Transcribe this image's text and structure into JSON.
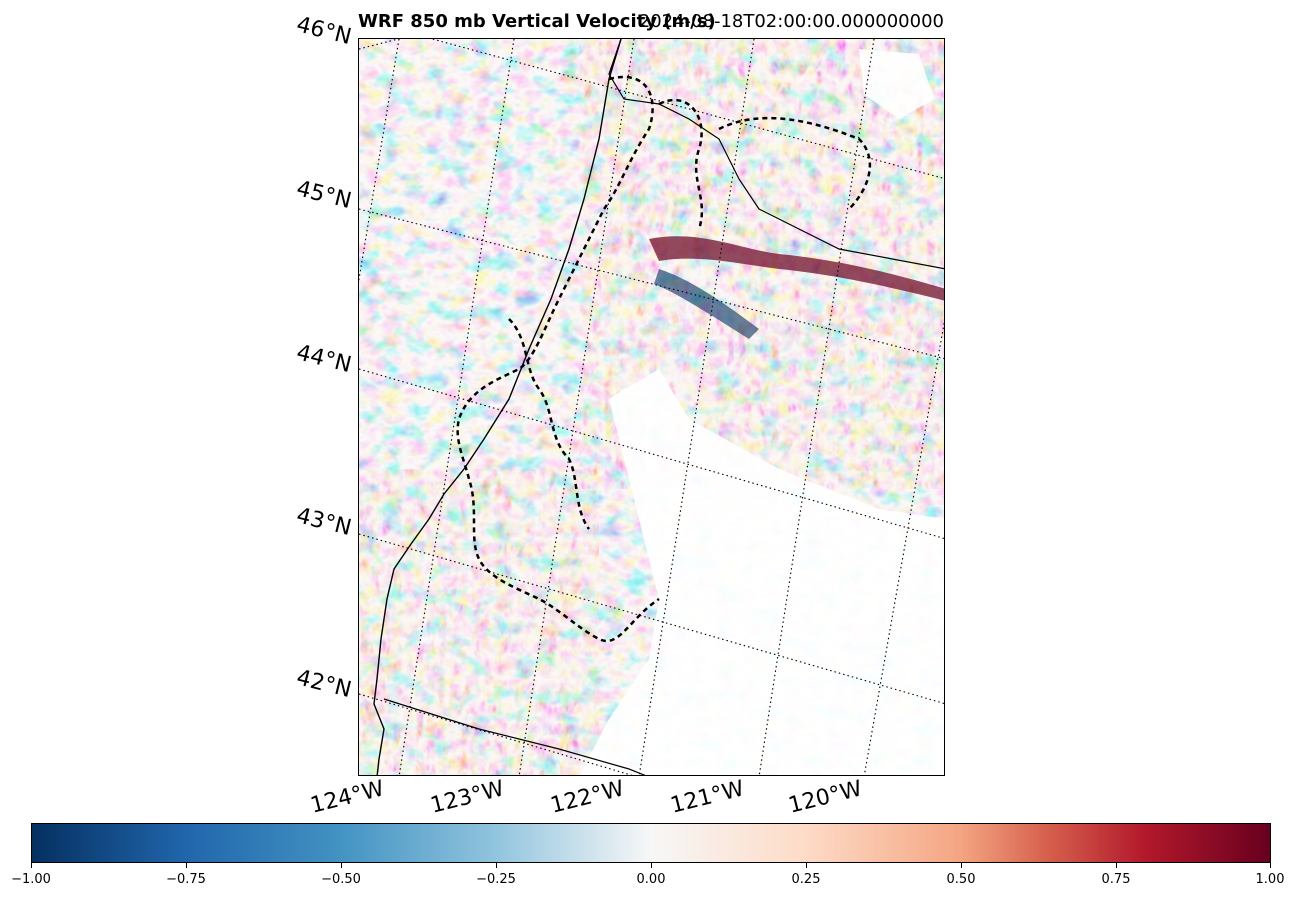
{
  "title": {
    "left": "WRF 850 mb Vertical Velocity (m/s)",
    "right": "2024-08-18T02:00:00.000000000"
  },
  "latitude_labels": [
    "46°N",
    "45°N",
    "44°N",
    "43°N",
    "42°N"
  ],
  "longitude_labels": [
    "124°W",
    "123°W",
    "122°W",
    "121°W",
    "120°W"
  ],
  "colorbar": {
    "ticks": [
      "−1.00",
      "−0.75",
      "−0.50",
      "−0.25",
      "0.00",
      "0.25",
      "0.50",
      "0.75",
      "1.00"
    ],
    "colormap": "RdBu_r",
    "range": [
      -1.0,
      1.0
    ]
  },
  "colors": {
    "strong_negative": "#053061",
    "negative": "#2166ac",
    "neutral": "#f7f7f7",
    "positive": "#d6604d",
    "strong_positive": "#67001f"
  }
}
